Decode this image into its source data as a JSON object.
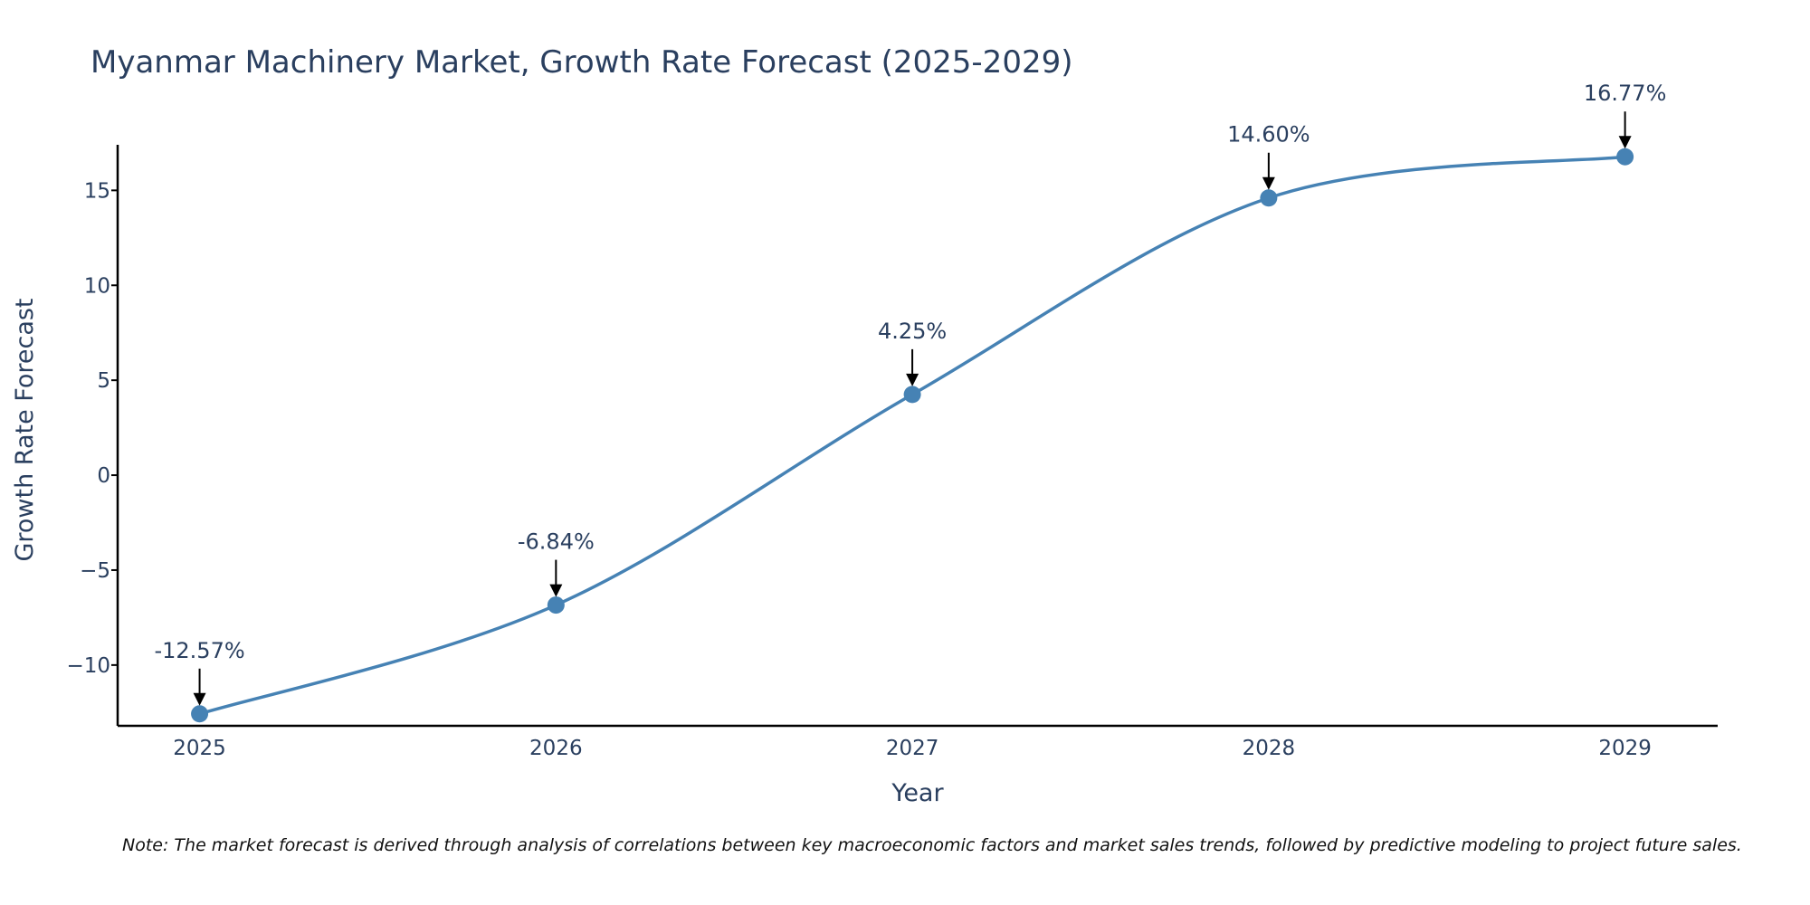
{
  "chart_data": {
    "type": "line",
    "title": "Myanmar Machinery Market, Growth Rate Forecast (2025-2029)",
    "xlabel": "Year",
    "ylabel": "Growth Rate Forecast",
    "categories": [
      "2025",
      "2026",
      "2027",
      "2028",
      "2029"
    ],
    "values": [
      -12.57,
      -6.84,
      4.25,
      14.6,
      16.77
    ],
    "data_labels": [
      "-12.57%",
      "-6.84%",
      "4.25%",
      "14.60%",
      "16.77%"
    ],
    "yticks": [
      -10,
      -5,
      0,
      5,
      10,
      15
    ],
    "ytick_labels": [
      "−10",
      "−5",
      "0",
      "5",
      "10",
      "15"
    ],
    "ylim": [
      -13.2,
      17.4
    ],
    "xlim": [
      2024.77,
      2029.26
    ],
    "grid": false,
    "line_shape": "spline",
    "line_color": "#4682b4",
    "marker_color": "#4682b4",
    "note": "Note: The market forecast is derived through analysis of correlations between key macroeconomic factors and market sales trends, followed by predictive modeling to project future sales."
  }
}
